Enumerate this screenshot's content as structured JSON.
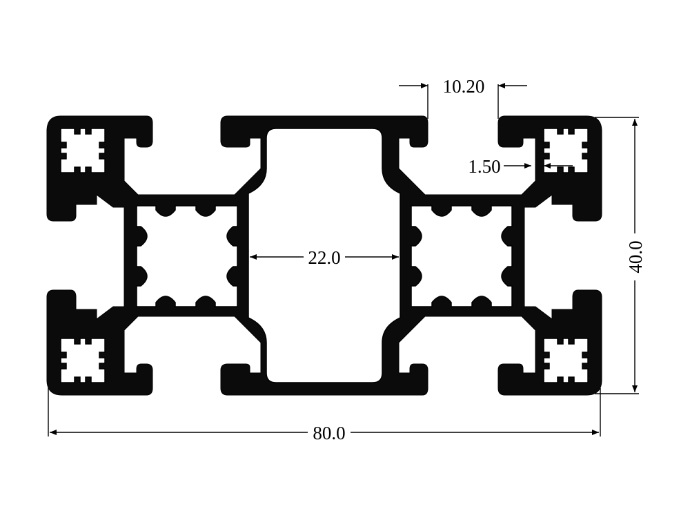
{
  "dimensions": {
    "slot_width": "10.20",
    "wall_thickness": "1.50",
    "center_gap": "22.0",
    "overall_width": "80.0",
    "overall_height": "40.0"
  },
  "colors": {
    "profile": "#0b0b0b",
    "background": "#ffffff",
    "lines": "#000000"
  }
}
